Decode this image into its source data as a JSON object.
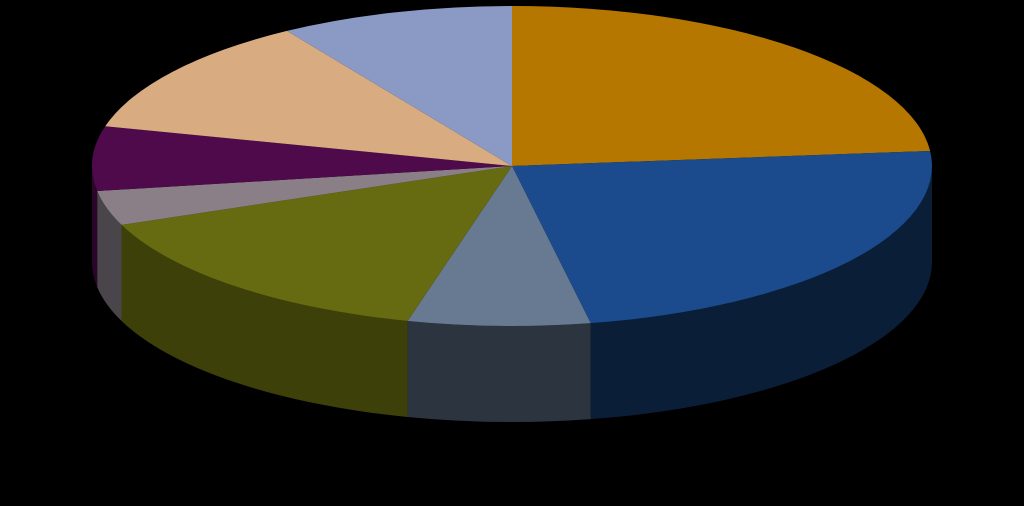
{
  "chart_data": {
    "type": "pie",
    "style": "3d",
    "legend": "none",
    "data_labels": "none",
    "slices": [
      {
        "value": 23.5,
        "color": "#B57700",
        "side_color": "#6B4600"
      },
      {
        "value": 23.5,
        "color": "#1B4B8C",
        "side_color": "#0B1E38"
      },
      {
        "value": 7.0,
        "color": "#677A91",
        "side_color": "#2C343F"
      },
      {
        "value": 15.0,
        "color": "#666A10",
        "side_color": "#3E400A"
      },
      {
        "value": 3.5,
        "color": "#8A7F86",
        "side_color": "#4A454A"
      },
      {
        "value": 6.5,
        "color": "#4F0A4B",
        "side_color": "#2C062A"
      },
      {
        "value": 12.0,
        "color": "#D9AB81",
        "side_color": "#7A6048"
      },
      {
        "value": 9.0,
        "color": "#8A9AC5",
        "side_color": "#4A5470"
      }
    ]
  }
}
